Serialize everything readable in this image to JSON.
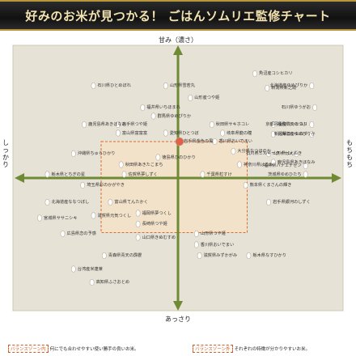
{
  "title": "好みのお米が見つかる！ ごはんソムリエ監修チャート",
  "axes": {
    "top": "甘み（濃さ）",
    "bottom": "あっさり",
    "left": "しっかり",
    "right": "もちもち"
  },
  "legend": {
    "balance_tag": "バランスゾーン内",
    "balance_text": "何にでも合わせやすい使い勝手の良いお米。",
    "outside_tag": "バランスゾーン外",
    "outside_text": "それぞれの特徴が分かりやすいお米。"
  },
  "colors": {
    "background": "#e7e2d6",
    "axis": "#6f8a34",
    "zone": "#f6e2c6",
    "zone_border": "#e06a2c",
    "highlight": "#e06048",
    "grain": "#ffffff"
  },
  "chart_data": {
    "type": "scatter",
    "xlabel_left": "しっかり",
    "xlabel_right": "もちもち",
    "ylabel_top": "甘み（濃さ）",
    "ylabel_bottom": "あっさり",
    "xlim": [
      -100,
      100
    ],
    "ylim": [
      -100,
      100
    ],
    "grid": false,
    "balance_zone": {
      "x": [
        -50,
        45
      ],
      "y": [
        -45,
        30
      ]
    },
    "points": [
      {
        "label": "魚沼産コシヒカリ",
        "x": 50,
        "y": 86
      },
      {
        "label": "石川県ひとめぼれ",
        "x": -55,
        "y": 76
      },
      {
        "label": "山形県雪若丸",
        "x": -8,
        "y": 76
      },
      {
        "label": "新潟県新之助",
        "x": 58,
        "y": 74
      },
      {
        "label": "北海道産ゆめぴりか",
        "x": 87,
        "y": 76
      },
      {
        "label": "山形産つや姫",
        "x": 8,
        "y": 66
      },
      {
        "label": "石川県ゆうがお",
        "x": 89,
        "y": 58
      },
      {
        "label": "福井県いちほまれ",
        "x": -23,
        "y": 58
      },
      {
        "label": "群馬県ゆめぴりか",
        "x": -16,
        "y": 51
      },
      {
        "label": "鹿児島県あきほなみ",
        "x": -61,
        "y": 44
      },
      {
        "label": "岩手県つや姫",
        "x": -39,
        "y": 44
      },
      {
        "label": "秋田県サキホコレ",
        "x": 22,
        "y": 44
      },
      {
        "label": "福島県天のつぶ",
        "x": 62,
        "y": 44
      },
      {
        "label": "京都丹後産コシヒカリ",
        "x": 87,
        "y": 44
      },
      {
        "label": "富山県富富富",
        "x": -39,
        "y": 37
      },
      {
        "label": "愛知県ひとつぼ",
        "x": -8,
        "y": 37
      },
      {
        "label": "岐阜県龍の瞳",
        "x": 29,
        "y": 37
      },
      {
        "label": "北海道産ゆめぴりか",
        "x": 62,
        "y": 36
      },
      {
        "label": "新潟県コシヒカリ",
        "x": 87,
        "y": 36
      },
      {
        "label": "岩手県金色の風",
        "x": 1,
        "y": 30,
        "highlight": true
      },
      {
        "label": "香川県おいでまい",
        "x": 24,
        "y": 30
      },
      {
        "label": "山形県はえぬき",
        "x": 59,
        "y": 20
      },
      {
        "label": "石川県ミルキークイーン",
        "x": 77,
        "y": 20
      },
      {
        "label": "沖縄県ちゅらひかり",
        "x": -68,
        "y": 20
      },
      {
        "label": "徳島県ひのひかり",
        "x": -13,
        "y": 17
      },
      {
        "label": "大分県なつほのか",
        "x": 36,
        "y": 22
      },
      {
        "label": "神奈川県はるみ",
        "x": 40,
        "y": 11
      },
      {
        "label": "鹿児島県あきほなみ",
        "x": 62,
        "y": 13
      },
      {
        "label": "福井県ハナエチゼン",
        "x": 83,
        "y": 10
      },
      {
        "label": "秋田県あきたこまち",
        "x": -37,
        "y": 11
      },
      {
        "label": "茨城県ゆめひたち",
        "x": 83,
        "y": 3
      },
      {
        "label": "栃木県とちぎの星",
        "x": -85,
        "y": 3
      },
      {
        "label": "佐賀県夢しずく",
        "x": -35,
        "y": 3
      },
      {
        "label": "千葉県粒すけ",
        "x": 16,
        "y": 3
      },
      {
        "label": "埼玉県彩のかがやき",
        "x": -62,
        "y": -6
      },
      {
        "label": "熊本県くまさんの輝き",
        "x": 44,
        "y": -6
      },
      {
        "label": "北海道産ななつぼし",
        "x": -85,
        "y": -20
      },
      {
        "label": "富山県てんたかく",
        "x": -44,
        "y": -20
      },
      {
        "label": "岩手県銀河のしずく",
        "x": 59,
        "y": -20
      },
      {
        "label": "宮城県ササニシキ",
        "x": -90,
        "y": -33
      },
      {
        "label": "滋賀県元気つくし",
        "x": -55,
        "y": -31
      },
      {
        "label": "福岡県夢つくし",
        "x": -26,
        "y": -29
      },
      {
        "label": "長崎県つや姫",
        "x": -26,
        "y": -38
      },
      {
        "label": "山形県つや姫",
        "x": 12,
        "y": -46
      },
      {
        "label": "広島県恋の予感",
        "x": -75,
        "y": -46
      },
      {
        "label": "山口県きぬむすめ",
        "x": -26,
        "y": -49
      },
      {
        "label": "香川県おいでまい",
        "x": 12,
        "y": -55
      },
      {
        "label": "青森県青天の霹靂",
        "x": -48,
        "y": -64
      },
      {
        "label": "滋賀県みずかがみ",
        "x": 14,
        "y": -64
      },
      {
        "label": "栃木県なすひかり",
        "x": 46,
        "y": -64
      },
      {
        "label": "台湾産米蓬莱",
        "x": -68,
        "y": -75
      },
      {
        "label": "高知県ふさおとめ",
        "x": -56,
        "y": -86
      }
    ]
  }
}
